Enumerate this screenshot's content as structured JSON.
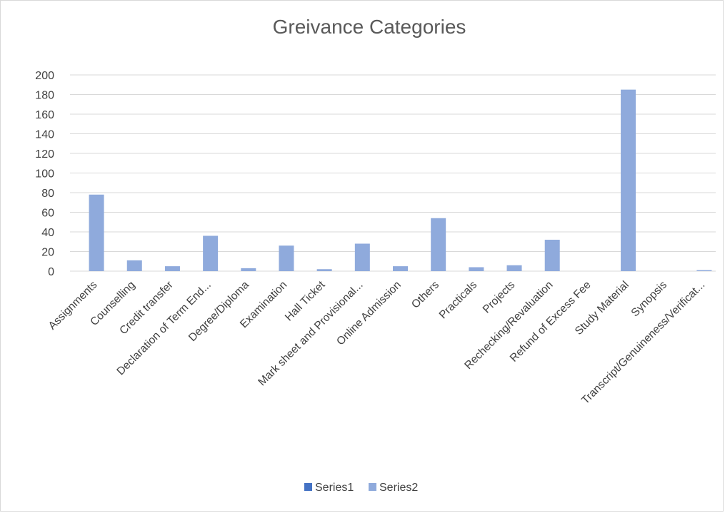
{
  "chart_data": {
    "type": "bar",
    "title": "Greivance Categories",
    "xlabel": "",
    "ylabel": "",
    "ylim": [
      0,
      200
    ],
    "yticks": [
      0,
      20,
      40,
      60,
      80,
      100,
      120,
      140,
      160,
      180,
      200
    ],
    "grid": true,
    "legend_position": "bottom",
    "categories": [
      "Assignments",
      "Counselling",
      "Credit transfer",
      "Declaration of Term End...",
      "Degree/Diploma",
      "Examination",
      "Hall Ticket",
      "Mark sheet and Provisional...",
      "Online Admission",
      "Others",
      "Practicals",
      "Projects",
      "Rechecking/Revaluation",
      "Refund of Excess Fee",
      "Study Material",
      "Synopsis",
      "Transcript/Genuineness/Verificat..."
    ],
    "series": [
      {
        "name": "Series1",
        "color": "#4472c4",
        "values": [
          0,
          0,
          0,
          0,
          0,
          0,
          0,
          0,
          0,
          0,
          0,
          0,
          0,
          0,
          0,
          0,
          0
        ]
      },
      {
        "name": "Series2",
        "color": "#8faadc",
        "values": [
          78,
          11,
          5,
          36,
          3,
          26,
          2,
          28,
          5,
          54,
          4,
          6,
          32,
          0,
          185,
          0,
          1
        ]
      }
    ]
  }
}
